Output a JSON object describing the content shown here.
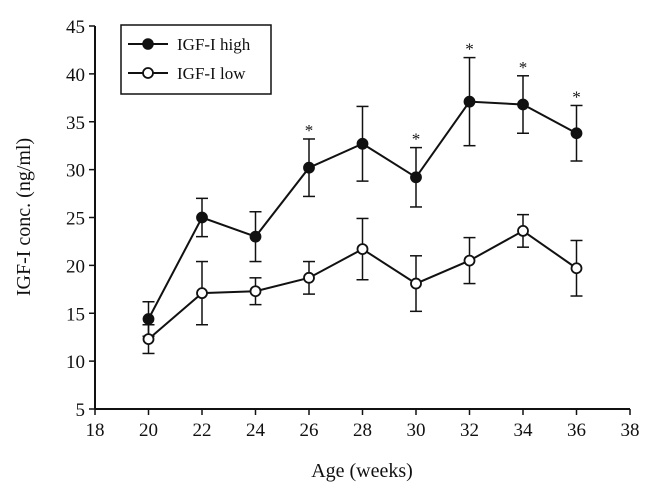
{
  "chart_data": {
    "type": "line",
    "xlabel": "Age (weeks)",
    "ylabel": "IGF-I conc. (ng/ml)",
    "xlim": [
      18,
      38
    ],
    "ylim": [
      5,
      45
    ],
    "x_ticks": [
      18,
      20,
      22,
      24,
      26,
      28,
      30,
      32,
      34,
      36,
      38
    ],
    "y_ticks": [
      5,
      10,
      15,
      20,
      25,
      30,
      35,
      40,
      45
    ],
    "legend_position": "top-left",
    "grid": false,
    "significance_marker": "*",
    "series": [
      {
        "name": "IGF-I high",
        "marker": "filled-circle",
        "x": [
          20,
          22,
          24,
          26,
          28,
          30,
          32,
          34,
          36
        ],
        "y": [
          14.4,
          25.0,
          23.0,
          30.2,
          32.7,
          29.2,
          37.1,
          36.8,
          33.8
        ],
        "error": [
          1.8,
          2.0,
          2.6,
          3.0,
          3.9,
          3.1,
          4.6,
          3.0,
          2.9
        ],
        "significant": [
          false,
          false,
          false,
          true,
          false,
          true,
          true,
          true,
          true
        ]
      },
      {
        "name": "IGF-I low",
        "marker": "open-circle",
        "x": [
          20,
          22,
          24,
          26,
          28,
          30,
          32,
          34,
          36
        ],
        "y": [
          12.3,
          17.1,
          17.3,
          18.7,
          21.7,
          18.1,
          20.5,
          23.6,
          19.7
        ],
        "error": [
          1.5,
          3.3,
          1.4,
          1.7,
          3.2,
          2.9,
          2.4,
          1.7,
          2.9
        ],
        "significant": [
          false,
          false,
          false,
          false,
          false,
          false,
          false,
          false,
          false
        ]
      }
    ]
  }
}
